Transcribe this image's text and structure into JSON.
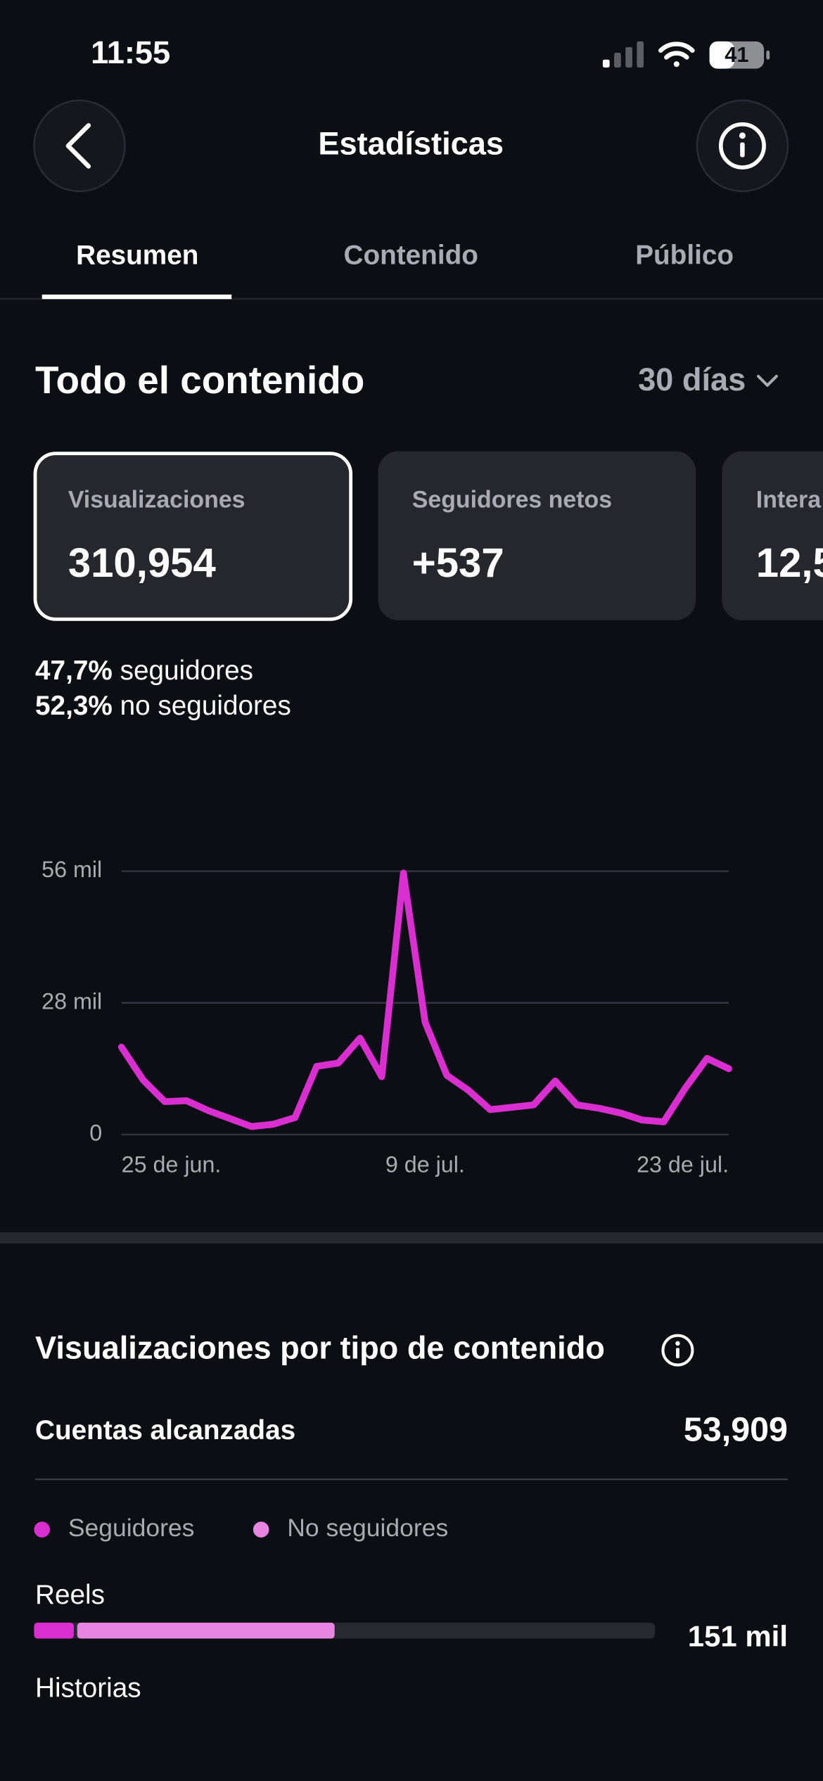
{
  "status_bar": {
    "time": "11:55",
    "battery": "41"
  },
  "header": {
    "title": "Estadísticas"
  },
  "tabs": [
    "Resumen",
    "Contenido",
    "Público"
  ],
  "section": {
    "title": "Todo el contenido",
    "period": "30 días"
  },
  "cards": [
    {
      "label": "Visualizaciones",
      "value": "310,954"
    },
    {
      "label": "Seguidores netos",
      "value": "+537"
    },
    {
      "label": "Intera",
      "value": "12,5"
    }
  ],
  "audience_split": [
    {
      "value": "47,7%",
      "label": "seguidores"
    },
    {
      "value": "52,3%",
      "label": "no seguidores"
    }
  ],
  "chart_data": {
    "type": "line",
    "categories": [
      "25 de jun.",
      null,
      null,
      null,
      null,
      null,
      null,
      null,
      null,
      null,
      null,
      null,
      null,
      null,
      "9 de jul.",
      null,
      null,
      null,
      null,
      null,
      null,
      null,
      null,
      null,
      null,
      null,
      null,
      null,
      "23 de jul."
    ],
    "series": [
      {
        "name": "Visualizaciones",
        "color": "#d92fd0",
        "values": [
          18.6,
          11.6,
          7.0,
          7.2,
          5.1,
          3.4,
          1.7,
          2.2,
          3.6,
          14.5,
          15.2,
          20.5,
          12.3,
          55.6,
          23.9,
          12.6,
          9.4,
          5.3,
          5.8,
          6.3,
          11.4,
          6.3,
          5.6,
          4.6,
          3.1,
          2.7,
          9.9,
          16.2,
          14.0
        ]
      }
    ],
    "ylim": [
      0,
      56
    ],
    "yticks": [
      0,
      {
        "value": 28,
        "label": "28 mil"
      },
      {
        "value": 56,
        "label": "56 mil"
      }
    ],
    "grid": true
  },
  "content_types": {
    "title": "Visualizaciones por tipo de contenido",
    "reach_label": "Cuentas alcanzadas",
    "reach_value": "53,909",
    "legend": [
      {
        "name": "Seguidores",
        "color": "#d92fd0"
      },
      {
        "name": "No seguidores",
        "color": "#e884e2"
      }
    ],
    "bar_max": 100,
    "rows": [
      {
        "name": "Reels",
        "total": "151 mil",
        "segments": [
          6.4,
          42.0
        ]
      },
      {
        "name": "Historias"
      }
    ]
  }
}
